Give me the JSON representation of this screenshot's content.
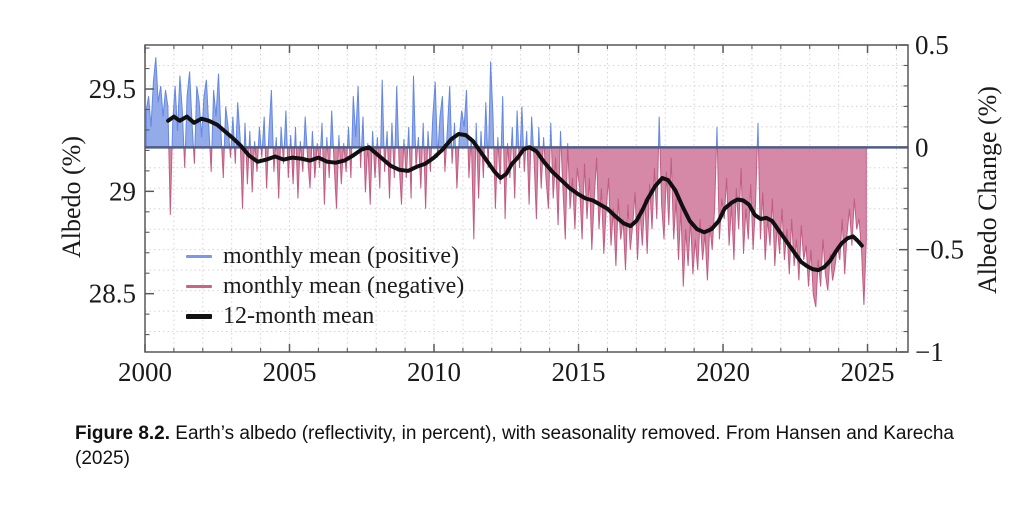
{
  "figure": {
    "caption_label": "Figure 8.2.",
    "caption_text": " Earth’s albedo (reflectivity, in percent), with seasonality removed. From Hansen and Karecha (2025)"
  },
  "chart_data": {
    "type": "area+line",
    "title": "",
    "x_axis": {
      "range": [
        2000,
        2026.4
      ],
      "major_ticks": [
        2000,
        2005,
        2010,
        2015,
        2020,
        2025
      ],
      "minor_step": 1,
      "tick_labels": [
        "2000",
        "2005",
        "2010",
        "2015",
        "2020",
        "2025"
      ]
    },
    "y_left": {
      "label": "Albedo (%)",
      "major_ticks": [
        29.5,
        29.0,
        28.5
      ],
      "tick_labels": [
        "29.5",
        "29",
        "28.5"
      ],
      "albedo_offset": 29.215,
      "minor_step": 0.1
    },
    "y_right": {
      "label": "Albedo Change (%)",
      "range": [
        -1.0,
        0.5
      ],
      "major_ticks": [
        0.5,
        0.0,
        -0.5,
        -1.0
      ],
      "tick_labels": [
        "0.5",
        "0",
        "−0.5",
        "−1"
      ],
      "minor_step": 0.1
    },
    "grid": {
      "on": true,
      "style": "dotted"
    },
    "legend": [
      {
        "label": "monthly mean (positive)",
        "color": "#7b97e8",
        "weight": "thin"
      },
      {
        "label": "monthly mean (negative)",
        "color": "#cb6386",
        "weight": "thin"
      },
      {
        "label": "12-month mean",
        "color": "#111111",
        "weight": "thick"
      }
    ],
    "colors": {
      "positive_fill": "#93abe9",
      "positive_edge": "#6487e2",
      "negative_fill": "#d689a6",
      "negative_edge": "#c05d82",
      "mean_line": "#101010",
      "zero_line": "#4d5d8a",
      "grid": "#dcd0d4",
      "axis": "#595959",
      "text": "#1a1a1a"
    },
    "series": {
      "monthly_mean_change": {
        "name": "monthly mean",
        "start_year": 2000,
        "values_per_year": 12,
        "values_by_year": [
          [
            0.18,
            0.25,
            0.1,
            0.32,
            0.44,
            0.22,
            0.3,
            0.15,
            0.28,
            0.2,
            -0.33,
            0.12
          ],
          [
            0.3,
            0.08,
            0.35,
            0.18,
            -0.1,
            0.25,
            0.37,
            0.12,
            -0.08,
            0.3,
            0.22,
            0.05
          ],
          [
            0.25,
            0.33,
            0.1,
            -0.12,
            0.28,
            0.15,
            0.36,
            0.08,
            -0.15,
            0.2,
            0.1,
            -0.05
          ],
          [
            0.15,
            -0.08,
            0.22,
            0.05,
            -0.3,
            0.12,
            -0.18,
            0.08,
            -0.22,
            0.03,
            -0.12,
            0.1
          ],
          [
            -0.05,
            0.15,
            -0.2,
            0.08,
            0.28,
            -0.12,
            0.05,
            -0.25,
            0.1,
            -0.08,
            0.18,
            -0.15
          ],
          [
            0.06,
            -0.18,
            0.1,
            -0.25,
            0.03,
            -0.12,
            0.15,
            -0.05,
            -0.2,
            0.08,
            -0.15,
            0.02
          ],
          [
            -0.1,
            0.12,
            -0.28,
            0.05,
            -0.15,
            0.18,
            -0.08,
            -0.3,
            0.06,
            -0.18,
            0.02,
            -0.12
          ],
          [
            0.1,
            -0.15,
            0.25,
            0.05,
            0.3,
            -0.1,
            0.15,
            -0.22,
            0.02,
            -0.28,
            0.08,
            -0.15
          ],
          [
            0.05,
            -0.2,
            0.33,
            -0.12,
            0.08,
            -0.25,
            0.12,
            -0.15,
            0.3,
            -0.08,
            -0.28,
            0.04
          ],
          [
            -0.15,
            0.1,
            -0.25,
            0.35,
            -0.1,
            0.05,
            -0.2,
            0.12,
            -0.3,
            0.08,
            -0.12,
            0.15
          ],
          [
            0.32,
            -0.05,
            0.15,
            0.25,
            -0.12,
            0.08,
            0.3,
            -0.08,
            0.12,
            -0.2,
            0.05,
            0.18
          ],
          [
            0.1,
            0.28,
            -0.15,
            0.05,
            -0.45,
            0.12,
            -0.25,
            0.08,
            -0.15,
            0.22,
            -0.1,
            0.42
          ],
          [
            0.15,
            -0.3,
            0.05,
            -0.18,
            0.25,
            -0.35,
            0.02,
            -0.15,
            0.1,
            -0.25,
            0.18,
            -0.1
          ],
          [
            0.2,
            -0.12,
            0.08,
            -0.28,
            0.15,
            -0.05,
            -0.35,
            0.1,
            -0.2,
            0.05,
            -0.15,
            -0.3
          ],
          [
            0.12,
            -0.25,
            -0.05,
            -0.38,
            0.08,
            -0.2,
            -0.45,
            0.02,
            -0.3,
            -0.15,
            -0.4,
            -0.1
          ],
          [
            -0.2,
            -0.45,
            -0.08,
            -0.35,
            -0.15,
            -0.5,
            -0.25,
            -0.05,
            -0.4,
            -0.2,
            -0.52,
            -0.3
          ],
          [
            -0.15,
            -0.48,
            -0.3,
            -0.58,
            -0.25,
            -0.45,
            -0.35,
            -0.6,
            -0.28,
            -0.5,
            -0.38,
            -0.22
          ],
          [
            -0.55,
            -0.3,
            -0.48,
            -0.25,
            -0.52,
            -0.18,
            -0.4,
            -0.1,
            -0.35,
            0.15,
            -0.28,
            -0.45
          ],
          [
            -0.12,
            -0.38,
            -0.05,
            -0.45,
            -0.25,
            -0.55,
            -0.3,
            -0.68,
            -0.4,
            -0.58,
            -0.35,
            -0.62
          ],
          [
            -0.45,
            -0.6,
            -0.35,
            -0.55,
            -0.42,
            -0.65,
            -0.38,
            -0.5,
            -0.3,
            0.1,
            -0.45,
            -0.25
          ],
          [
            -0.35,
            -0.15,
            -0.48,
            -0.28,
            -0.55,
            -0.2,
            -0.4,
            -0.1,
            -0.52,
            -0.3,
            -0.45,
            -0.18
          ],
          [
            -0.5,
            -0.28,
            0.12,
            -0.45,
            -0.22,
            -0.55,
            -0.35,
            -0.48,
            -0.25,
            -0.58,
            -0.38,
            -0.52
          ],
          [
            -0.3,
            -0.55,
            -0.4,
            -0.62,
            -0.35,
            -0.58,
            -0.45,
            -0.65,
            -0.38,
            -0.55,
            -0.48,
            -0.68
          ],
          [
            -0.5,
            -0.72,
            -0.78,
            -0.55,
            -0.68,
            -0.45,
            -0.62,
            -0.7,
            -0.52,
            -0.65,
            -0.58,
            -0.48
          ],
          [
            -0.55,
            -0.35,
            -0.62,
            -0.42,
            -0.3,
            -0.48,
            -0.25,
            -0.4,
            -0.35,
            -0.5,
            -0.77,
            -0.45
          ]
        ]
      },
      "twelve_month_mean_change": {
        "name": "12-month mean",
        "points": [
          [
            2000.8,
            0.13
          ],
          [
            2001.0,
            0.15
          ],
          [
            2001.2,
            0.13
          ],
          [
            2001.45,
            0.15
          ],
          [
            2001.7,
            0.12
          ],
          [
            2001.95,
            0.14
          ],
          [
            2002.2,
            0.13
          ],
          [
            2002.5,
            0.11
          ],
          [
            2002.75,
            0.08
          ],
          [
            2003.0,
            0.05
          ],
          [
            2003.3,
            0.01
          ],
          [
            2003.6,
            -0.04
          ],
          [
            2003.9,
            -0.07
          ],
          [
            2004.2,
            -0.06
          ],
          [
            2004.5,
            -0.045
          ],
          [
            2004.8,
            -0.06
          ],
          [
            2005.1,
            -0.05
          ],
          [
            2005.4,
            -0.055
          ],
          [
            2005.7,
            -0.065
          ],
          [
            2006.0,
            -0.05
          ],
          [
            2006.3,
            -0.07
          ],
          [
            2006.6,
            -0.075
          ],
          [
            2006.9,
            -0.065
          ],
          [
            2007.2,
            -0.04
          ],
          [
            2007.5,
            -0.01
          ],
          [
            2007.75,
            0.0
          ],
          [
            2008.0,
            -0.03
          ],
          [
            2008.25,
            -0.06
          ],
          [
            2008.5,
            -0.09
          ],
          [
            2008.8,
            -0.11
          ],
          [
            2009.1,
            -0.115
          ],
          [
            2009.4,
            -0.095
          ],
          [
            2009.7,
            -0.08
          ],
          [
            2010.0,
            -0.05
          ],
          [
            2010.3,
            -0.01
          ],
          [
            2010.6,
            0.04
          ],
          [
            2010.85,
            0.065
          ],
          [
            2011.1,
            0.06
          ],
          [
            2011.35,
            0.03
          ],
          [
            2011.6,
            -0.02
          ],
          [
            2011.85,
            -0.07
          ],
          [
            2012.1,
            -0.12
          ],
          [
            2012.3,
            -0.15
          ],
          [
            2012.5,
            -0.13
          ],
          [
            2012.7,
            -0.08
          ],
          [
            2012.9,
            -0.05
          ],
          [
            2013.1,
            -0.01
          ],
          [
            2013.3,
            0.0
          ],
          [
            2013.55,
            -0.02
          ],
          [
            2013.8,
            -0.07
          ],
          [
            2014.1,
            -0.12
          ],
          [
            2014.4,
            -0.16
          ],
          [
            2014.7,
            -0.2
          ],
          [
            2015.0,
            -0.23
          ],
          [
            2015.25,
            -0.25
          ],
          [
            2015.5,
            -0.26
          ],
          [
            2015.75,
            -0.28
          ],
          [
            2016.0,
            -0.3
          ],
          [
            2016.3,
            -0.34
          ],
          [
            2016.55,
            -0.37
          ],
          [
            2016.8,
            -0.385
          ],
          [
            2017.0,
            -0.36
          ],
          [
            2017.2,
            -0.31
          ],
          [
            2017.4,
            -0.25
          ],
          [
            2017.65,
            -0.19
          ],
          [
            2017.9,
            -0.15
          ],
          [
            2018.1,
            -0.16
          ],
          [
            2018.35,
            -0.21
          ],
          [
            2018.6,
            -0.29
          ],
          [
            2018.85,
            -0.36
          ],
          [
            2019.1,
            -0.4
          ],
          [
            2019.35,
            -0.415
          ],
          [
            2019.6,
            -0.4
          ],
          [
            2019.85,
            -0.36
          ],
          [
            2020.05,
            -0.3
          ],
          [
            2020.3,
            -0.27
          ],
          [
            2020.5,
            -0.255
          ],
          [
            2020.7,
            -0.26
          ],
          [
            2020.9,
            -0.28
          ],
          [
            2021.1,
            -0.33
          ],
          [
            2021.3,
            -0.35
          ],
          [
            2021.5,
            -0.345
          ],
          [
            2021.7,
            -0.36
          ],
          [
            2021.9,
            -0.4
          ],
          [
            2022.1,
            -0.44
          ],
          [
            2022.3,
            -0.48
          ],
          [
            2022.5,
            -0.52
          ],
          [
            2022.7,
            -0.56
          ],
          [
            2022.9,
            -0.58
          ],
          [
            2023.1,
            -0.595
          ],
          [
            2023.3,
            -0.6
          ],
          [
            2023.5,
            -0.585
          ],
          [
            2023.7,
            -0.555
          ],
          [
            2023.9,
            -0.51
          ],
          [
            2024.1,
            -0.47
          ],
          [
            2024.3,
            -0.445
          ],
          [
            2024.5,
            -0.435
          ],
          [
            2024.65,
            -0.455
          ],
          [
            2024.8,
            -0.48
          ]
        ]
      }
    }
  }
}
